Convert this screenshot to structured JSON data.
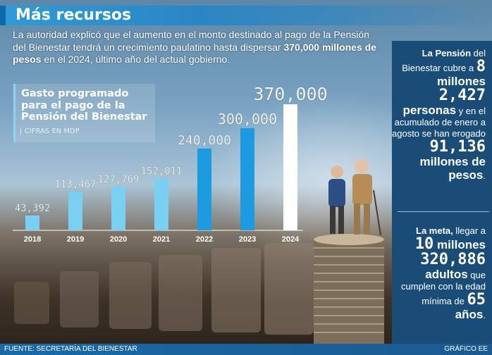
{
  "header": {
    "title": "Más recursos"
  },
  "intro": {
    "text_1": "La autoridad explicó que el aumento en el monto destinado al pago de la Pensión del Bienestar tendrá un crecimiento paulatino hasta dispersar ",
    "emphasis": "370,000 millones de pesos",
    "text_2": " en el 2024, último año del actual gobierno."
  },
  "chart_box": {
    "title": "Gasto programado para el pago de la Pensión del Bienestar",
    "subtitle": "| CIFRAS EN MDP"
  },
  "chart_data": {
    "type": "bar",
    "title": "Gasto programado para el pago de la Pensión del Bienestar",
    "subtitle": "CIFRAS EN MDP",
    "categories": [
      "2018",
      "2019",
      "2020",
      "2021",
      "2022",
      "2023",
      "2024"
    ],
    "values": [
      43392,
      113467,
      127769,
      152011,
      240000,
      300000,
      370000
    ],
    "value_labels": [
      "43,392",
      "113,467",
      "127,769",
      "152,011",
      "240,000",
      "300,000",
      "370,000"
    ],
    "bar_colors": [
      "#7ad0f2",
      "#7ad0f2",
      "#7ad0f2",
      "#7ad0f2",
      "#1d9be0",
      "#1d9be0",
      "#ffffff"
    ],
    "ylim": [
      0,
      370000
    ],
    "grid": false
  },
  "side": {
    "p1": {
      "lead": "La Pensión",
      "t1": " del Bienestar cubre a ",
      "n1": "8",
      "t2": " millones ",
      "n2": "2,427",
      "t3": "personas",
      "t4": " y en el acumulado de enero a agosto se han erogado ",
      "n3": "91,136",
      "t5": "millones de pesos",
      "t6": "."
    },
    "p2": {
      "lead": "La meta,",
      "t1": " llegar a ",
      "n1": "10",
      "t2": " millones ",
      "n2": "320,886",
      "t3": "adultos",
      "t4": " que cumplen con la edad mínima de ",
      "n3": "65",
      "t5": " años",
      "t6": "."
    }
  },
  "footer": {
    "source": "FUENTE: SECRETARÍA DEL BIENESTAR",
    "credit": "GRÁFICO EE"
  }
}
